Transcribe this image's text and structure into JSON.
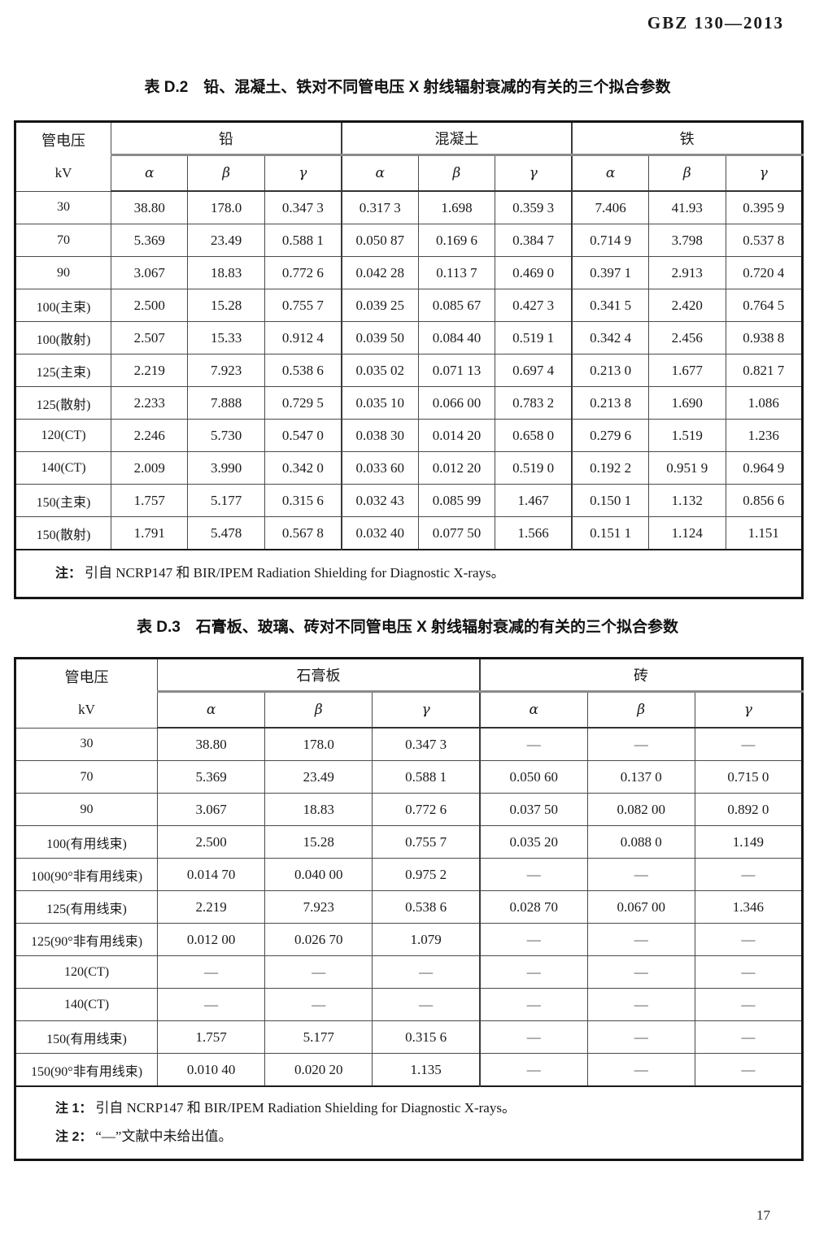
{
  "page": {
    "doc_code": "GBZ 130—2013",
    "page_number": "17"
  },
  "table_d2": {
    "title": "表 D.2　铅、混凝土、铁对不同管电压 X 射线辐射衰减的有关的三个拟合参数",
    "label_header_line1": "管电压",
    "label_header_line2": "kV",
    "groups": [
      "铅",
      "混凝土",
      "铁"
    ],
    "param_headers": [
      "α",
      "β",
      "γ"
    ],
    "rows": [
      {
        "label": "30",
        "values": [
          "38.80",
          "178.0",
          "0.347 3",
          "0.317 3",
          "1.698",
          "0.359 3",
          "7.406",
          "41.93",
          "0.395 9"
        ]
      },
      {
        "label": "70",
        "values": [
          "5.369",
          "23.49",
          "0.588 1",
          "0.050 87",
          "0.169 6",
          "0.384 7",
          "0.714 9",
          "3.798",
          "0.537 8"
        ]
      },
      {
        "label": "90",
        "values": [
          "3.067",
          "18.83",
          "0.772 6",
          "0.042 28",
          "0.113 7",
          "0.469 0",
          "0.397 1",
          "2.913",
          "0.720 4"
        ]
      },
      {
        "label": "100(主束)",
        "values": [
          "2.500",
          "15.28",
          "0.755 7",
          "0.039 25",
          "0.085 67",
          "0.427 3",
          "0.341 5",
          "2.420",
          "0.764 5"
        ]
      },
      {
        "label": "100(散射)",
        "values": [
          "2.507",
          "15.33",
          "0.912 4",
          "0.039 50",
          "0.084 40",
          "0.519 1",
          "0.342 4",
          "2.456",
          "0.938 8"
        ]
      },
      {
        "label": "125(主束)",
        "values": [
          "2.219",
          "7.923",
          "0.538 6",
          "0.035 02",
          "0.071 13",
          "0.697 4",
          "0.213 0",
          "1.677",
          "0.821 7"
        ]
      },
      {
        "label": "125(散射)",
        "values": [
          "2.233",
          "7.888",
          "0.729 5",
          "0.035 10",
          "0.066 00",
          "0.783 2",
          "0.213 8",
          "1.690",
          "1.086"
        ]
      },
      {
        "label": "120(CT)",
        "values": [
          "2.246",
          "5.730",
          "0.547 0",
          "0.038 30",
          "0.014 20",
          "0.658 0",
          "0.279 6",
          "1.519",
          "1.236"
        ]
      },
      {
        "label": "140(CT)",
        "values": [
          "2.009",
          "3.990",
          "0.342 0",
          "0.033 60",
          "0.012 20",
          "0.519 0",
          "0.192 2",
          "0.951 9",
          "0.964 9"
        ]
      },
      {
        "label": "150(主束)",
        "values": [
          "1.757",
          "5.177",
          "0.315 6",
          "0.032 43",
          "0.085 99",
          "1.467",
          "0.150 1",
          "1.132",
          "0.856 6"
        ]
      },
      {
        "label": "150(散射)",
        "values": [
          "1.791",
          "5.478",
          "0.567 8",
          "0.032 40",
          "0.077 50",
          "1.566",
          "0.151 1",
          "1.124",
          "1.151"
        ]
      }
    ],
    "notes": [
      {
        "label": "注：",
        "text": "引自 NCRP147 和 BIR/IPEM Radiation Shielding for Diagnostic X-rays。"
      }
    ]
  },
  "table_d3": {
    "title": "表 D.3　石膏板、玻璃、砖对不同管电压 X 射线辐射衰减的有关的三个拟合参数",
    "label_header_line1": "管电压",
    "label_header_line2": "kV",
    "groups": [
      "石膏板",
      "砖"
    ],
    "param_headers": [
      "α",
      "β",
      "γ"
    ],
    "rows": [
      {
        "label": "30",
        "values": [
          "38.80",
          "178.0",
          "0.347 3",
          "—",
          "—",
          "—"
        ]
      },
      {
        "label": "70",
        "values": [
          "5.369",
          "23.49",
          "0.588 1",
          "0.050 60",
          "0.137 0",
          "0.715 0"
        ]
      },
      {
        "label": "90",
        "values": [
          "3.067",
          "18.83",
          "0.772 6",
          "0.037 50",
          "0.082 00",
          "0.892 0"
        ]
      },
      {
        "label": "100(有用线束)",
        "values": [
          "2.500",
          "15.28",
          "0.755 7",
          "0.035 20",
          "0.088 0",
          "1.149"
        ]
      },
      {
        "label": "100(90°非有用线束)",
        "values": [
          "0.014 70",
          "0.040 00",
          "0.975 2",
          "—",
          "—",
          "—"
        ]
      },
      {
        "label": "125(有用线束)",
        "values": [
          "2.219",
          "7.923",
          "0.538 6",
          "0.028 70",
          "0.067 00",
          "1.346"
        ]
      },
      {
        "label": "125(90°非有用线束)",
        "values": [
          "0.012 00",
          "0.026 70",
          "1.079",
          "—",
          "—",
          "—"
        ]
      },
      {
        "label": "120(CT)",
        "values": [
          "—",
          "—",
          "—",
          "—",
          "—",
          "—"
        ]
      },
      {
        "label": "140(CT)",
        "values": [
          "—",
          "—",
          "—",
          "—",
          "—",
          "—"
        ]
      },
      {
        "label": "150(有用线束)",
        "values": [
          "1.757",
          "5.177",
          "0.315 6",
          "—",
          "—",
          "—"
        ]
      },
      {
        "label": "150(90°非有用线束)",
        "values": [
          "0.010 40",
          "0.020 20",
          "1.135",
          "—",
          "—",
          "—"
        ]
      }
    ],
    "notes": [
      {
        "label": "注 1：",
        "text": "引自 NCRP147 和 BIR/IPEM Radiation Shielding for Diagnostic X-rays。"
      },
      {
        "label": "注 2：",
        "text": "“—”文献中未给出值。"
      }
    ]
  }
}
